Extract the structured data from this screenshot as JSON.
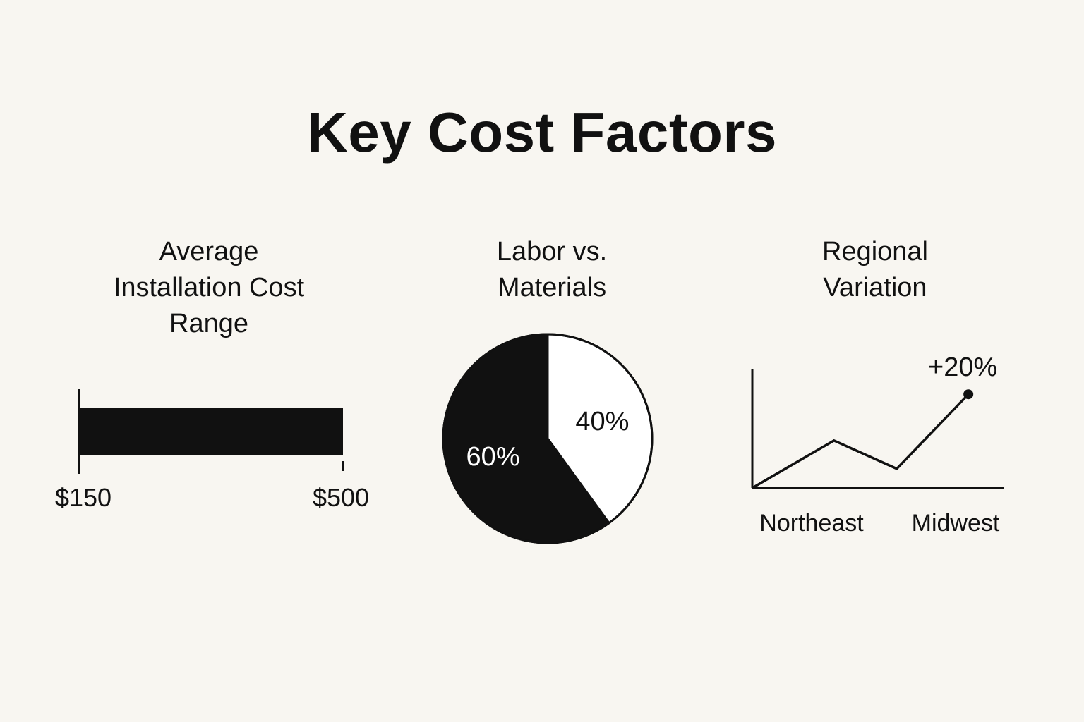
{
  "title": "Key Cost Factors",
  "colors": {
    "background": "#f8f6f1",
    "ink": "#111111",
    "paper": "#ffffff"
  },
  "chart_data": [
    {
      "type": "bar",
      "title_lines": [
        "Average",
        "Installation Cost",
        "Range"
      ],
      "orientation": "horizontal",
      "range": [
        150,
        500
      ],
      "tick_labels": [
        "$150",
        "$500"
      ]
    },
    {
      "type": "pie",
      "title_lines": [
        "Labor vs.",
        "Materials"
      ],
      "slices": [
        {
          "value": 40,
          "label": "40%",
          "fill": "#ffffff"
        },
        {
          "value": 60,
          "label": "60%",
          "fill": "#111111"
        }
      ]
    },
    {
      "type": "line",
      "title_lines": [
        "Regional",
        "Variation"
      ],
      "values": [
        0,
        0.42,
        0.17,
        0.83
      ],
      "x_tick_labels": [
        "Northeast",
        "Midwest"
      ],
      "endpoint_label": "+20%",
      "grid": false
    }
  ]
}
